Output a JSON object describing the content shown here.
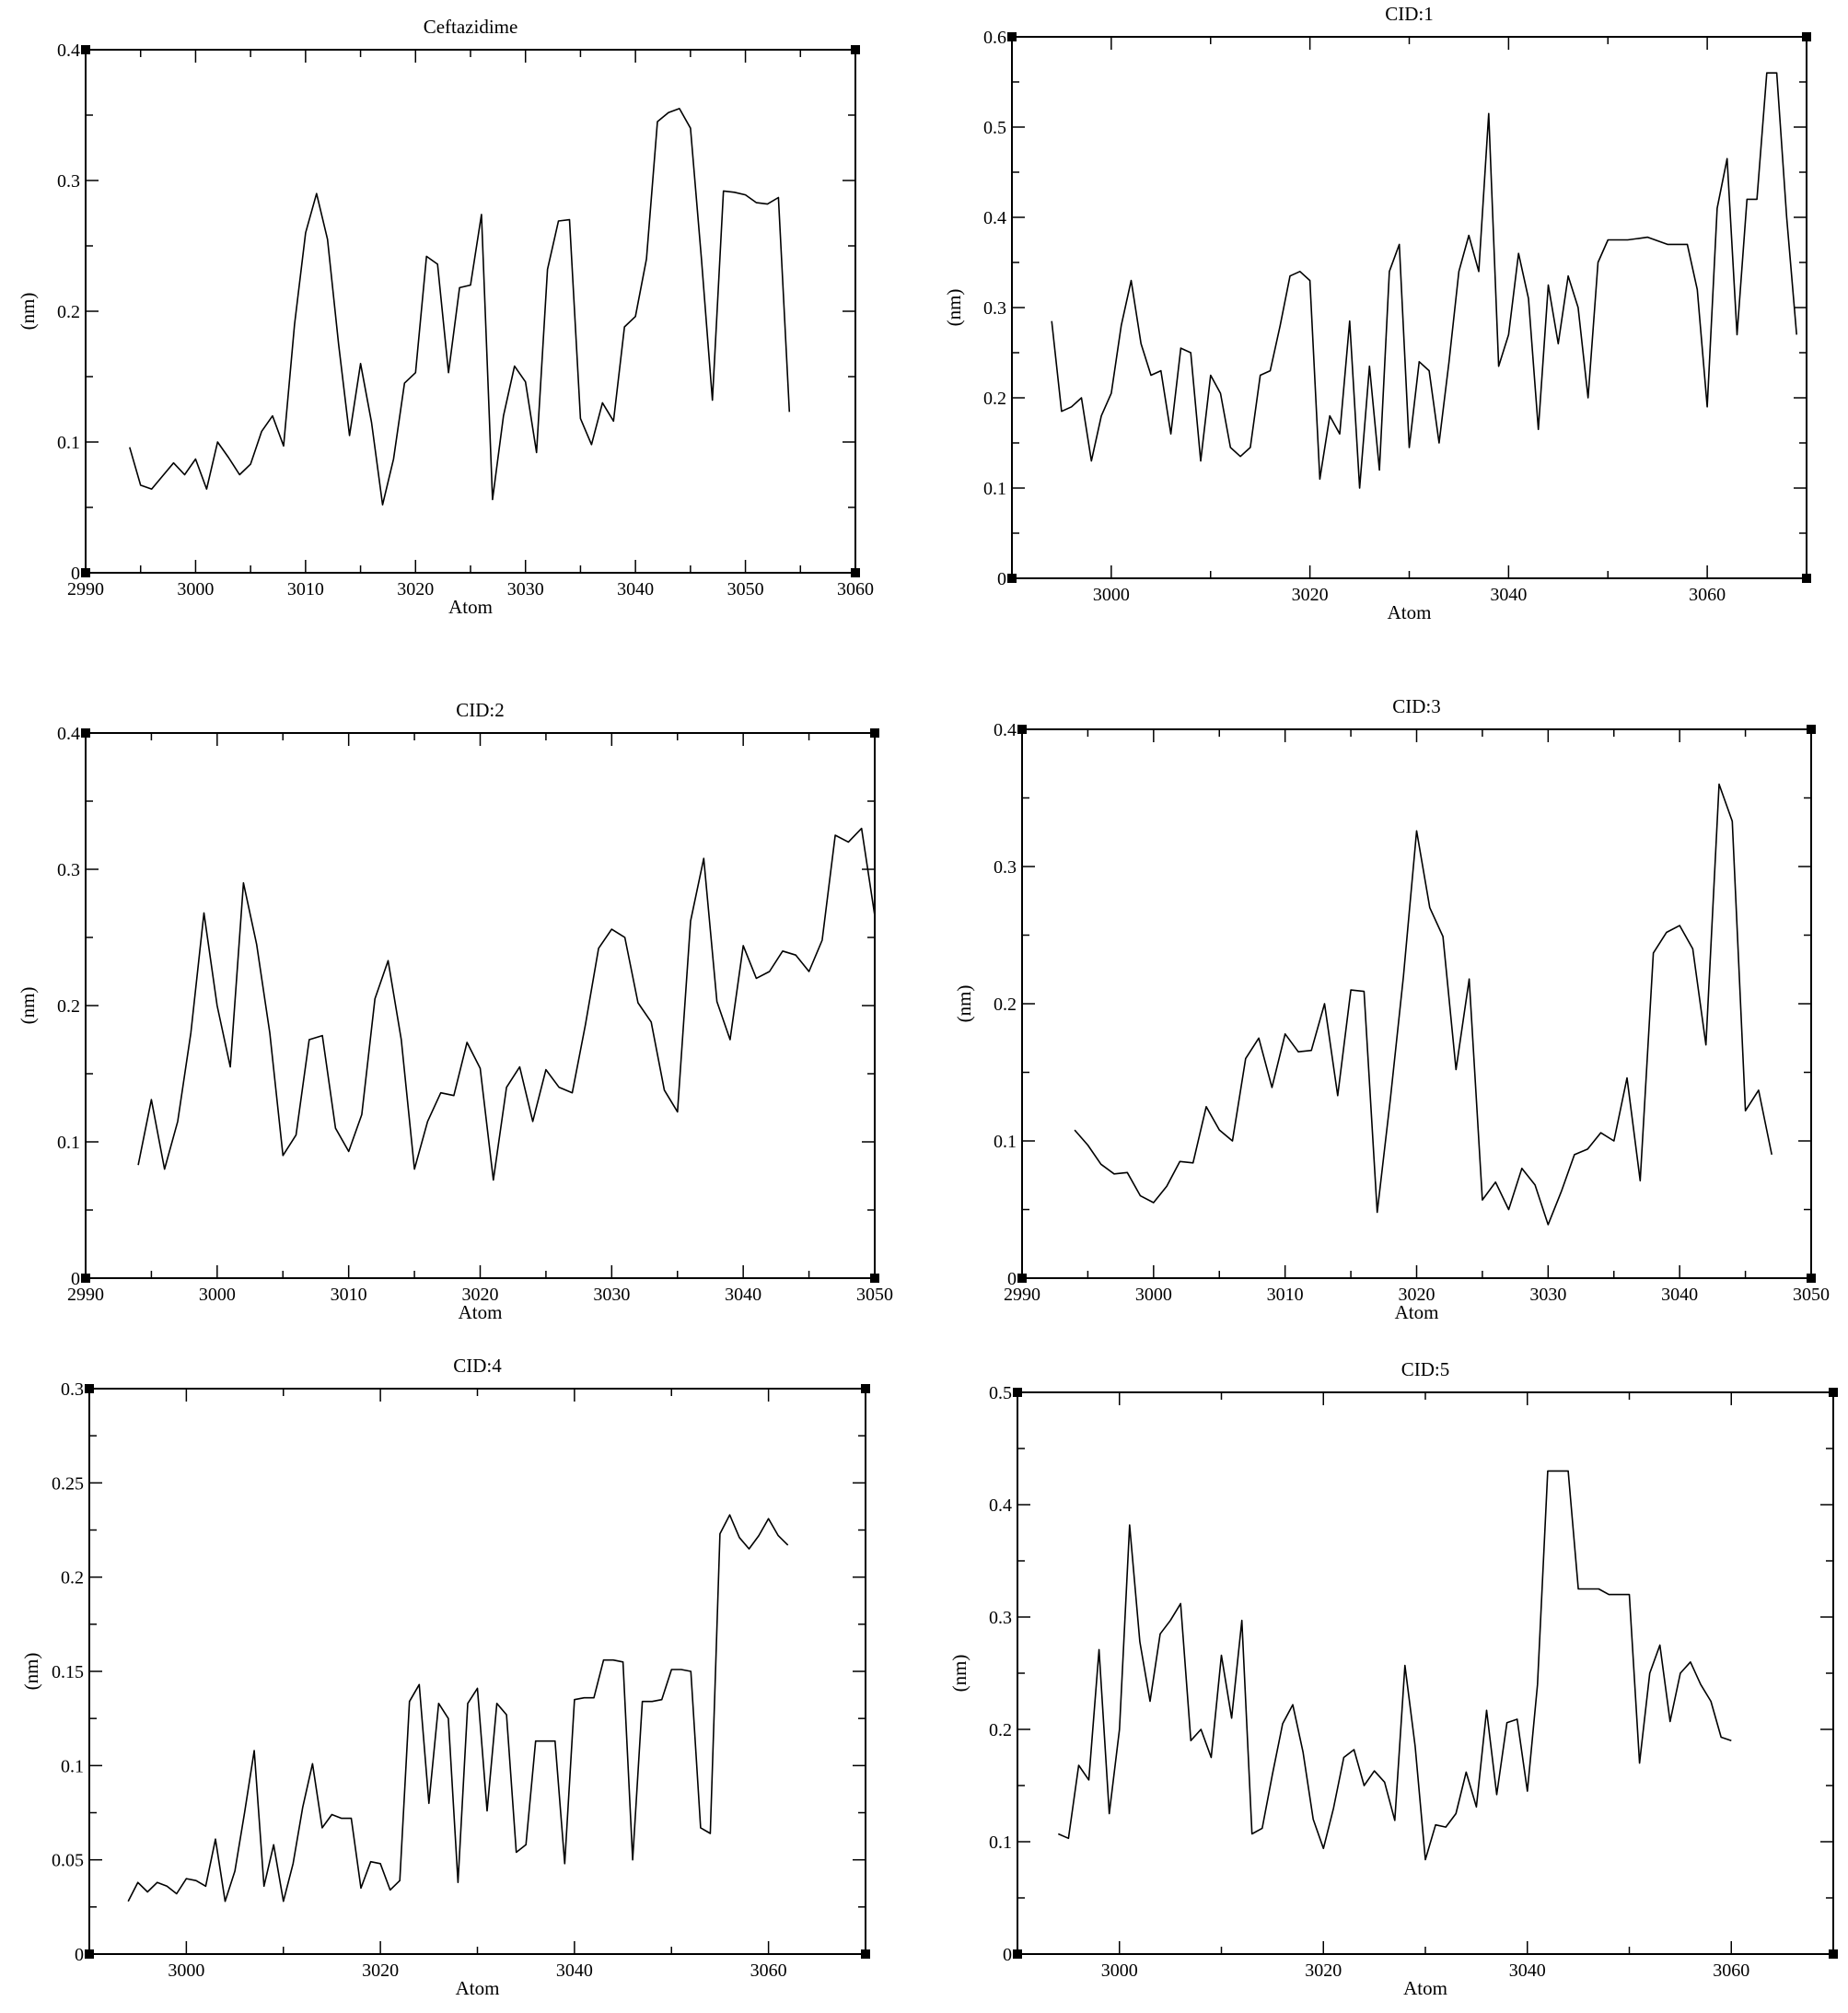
{
  "chart_data": [
    {
      "type": "line",
      "title": "Ceftazidime",
      "xlabel": "Atom",
      "ylabel": "(nm)",
      "xlim": [
        2990,
        3060
      ],
      "ylim": [
        0,
        0.4
      ],
      "xticks": [
        2990,
        3000,
        3010,
        3020,
        3030,
        3040,
        3050,
        3060
      ],
      "xtick_labels": [
        "2990",
        "3000",
        "3010",
        "3020",
        "3030",
        "3040",
        "3050",
        "3060"
      ],
      "yticks": [
        0,
        0.1,
        0.2,
        0.3,
        0.4
      ],
      "ytick_labels": [
        "0",
        "0.1",
        "0.2",
        "0.3",
        "0.4"
      ],
      "grid": false,
      "series": [
        {
          "x": [
            2994,
            2995,
            2996,
            2997,
            2998,
            2999,
            3000,
            3001,
            3002,
            3003,
            3004,
            3005,
            3006,
            3007,
            3008,
            3009,
            3010,
            3011,
            3012,
            3013,
            3014,
            3015,
            3016,
            3017,
            3018,
            3019,
            3020,
            3021,
            3022,
            3023,
            3024,
            3025,
            3026,
            3027,
            3028,
            3029,
            3030,
            3031,
            3032,
            3033,
            3034,
            3035,
            3036,
            3037,
            3038,
            3039,
            3040,
            3041,
            3042,
            3043,
            3044,
            3045,
            3046,
            3047,
            3048,
            3049,
            3050,
            3051,
            3052,
            3053,
            3054
          ],
          "y": [
            0.096,
            0.067,
            0.064,
            0.074,
            0.084,
            0.075,
            0.087,
            0.064,
            0.1,
            0.088,
            0.075,
            0.083,
            0.108,
            0.12,
            0.097,
            0.19,
            0.26,
            0.29,
            0.255,
            0.175,
            0.105,
            0.16,
            0.115,
            0.052,
            0.087,
            0.145,
            0.153,
            0.242,
            0.236,
            0.153,
            0.218,
            0.22,
            0.274,
            0.056,
            0.12,
            0.158,
            0.146,
            0.092,
            0.232,
            0.269,
            0.27,
            0.118,
            0.098,
            0.13,
            0.116,
            0.188,
            0.196,
            0.24,
            0.345,
            0.352,
            0.355,
            0.34,
            0.24,
            0.132,
            0.292,
            0.291,
            0.289,
            0.283,
            0.282,
            0.287,
            0.123
          ]
        }
      ]
    },
    {
      "type": "line",
      "title": "CID:1",
      "xlabel": "Atom",
      "ylabel": "(nm)",
      "xlim": [
        2990,
        3070
      ],
      "ylim": [
        0,
        0.6
      ],
      "xticks": [
        3000,
        3020,
        3040,
        3060
      ],
      "xtick_labels": [
        "3000",
        "3020",
        "3040",
        "3060"
      ],
      "yticks": [
        0,
        0.1,
        0.2,
        0.3,
        0.4,
        0.5,
        0.6
      ],
      "ytick_labels": [
        "0",
        "0.1",
        "0.2",
        "0.3",
        "0.4",
        "0.5",
        "0.6"
      ],
      "grid": false,
      "series": [
        {
          "x": [
            2994,
            2995,
            2996,
            2997,
            2998,
            2999,
            3000,
            3001,
            3002,
            3003,
            3004,
            3005,
            3006,
            3007,
            3008,
            3009,
            3010,
            3011,
            3012,
            3013,
            3014,
            3015,
            3016,
            3017,
            3018,
            3019,
            3020,
            3021,
            3022,
            3023,
            3024,
            3025,
            3026,
            3027,
            3028,
            3029,
            3030,
            3031,
            3032,
            3033,
            3034,
            3035,
            3036,
            3037,
            3038,
            3039,
            3040,
            3041,
            3042,
            3043,
            3044,
            3045,
            3046,
            3047,
            3048,
            3049,
            3050,
            3052,
            3054,
            3056,
            3058,
            3059,
            3060,
            3061,
            3062,
            3063,
            3064,
            3065,
            3066,
            3067,
            3068,
            3069
          ],
          "y": [
            0.285,
            0.185,
            0.19,
            0.2,
            0.13,
            0.18,
            0.205,
            0.28,
            0.33,
            0.26,
            0.225,
            0.23,
            0.16,
            0.255,
            0.25,
            0.13,
            0.225,
            0.205,
            0.145,
            0.135,
            0.145,
            0.225,
            0.23,
            0.28,
            0.335,
            0.34,
            0.33,
            0.11,
            0.18,
            0.16,
            0.285,
            0.1,
            0.235,
            0.12,
            0.34,
            0.37,
            0.145,
            0.24,
            0.23,
            0.15,
            0.24,
            0.34,
            0.38,
            0.34,
            0.515,
            0.235,
            0.27,
            0.36,
            0.31,
            0.165,
            0.325,
            0.26,
            0.335,
            0.3,
            0.2,
            0.35,
            0.375,
            0.375,
            0.378,
            0.37,
            0.37,
            0.32,
            0.19,
            0.41,
            0.465,
            0.27,
            0.42,
            0.42,
            0.56,
            0.56,
            0.4,
            0.27
          ]
        }
      ]
    },
    {
      "type": "line",
      "title": "CID:2",
      "xlabel": "Atom",
      "ylabel": "(nm)",
      "xlim": [
        2990,
        3050
      ],
      "ylim": [
        0,
        0.4
      ],
      "xticks": [
        2990,
        3000,
        3010,
        3020,
        3030,
        3040,
        3050
      ],
      "xtick_labels": [
        "2990",
        "3000",
        "3010",
        "3020",
        "3030",
        "3040",
        "3050"
      ],
      "yticks": [
        0,
        0.1,
        0.2,
        0.3,
        0.4
      ],
      "ytick_labels": [
        "0",
        "0.1",
        "0.2",
        "0.3",
        "0.4"
      ],
      "grid": false,
      "series": [
        {
          "x": [
            2994,
            2995,
            2996,
            2997,
            2998,
            2999,
            3000,
            3001,
            3002,
            3003,
            3004,
            3005,
            3006,
            3007,
            3008,
            3009,
            3010,
            3011,
            3012,
            3013,
            3014,
            3015,
            3016,
            3017,
            3018,
            3019,
            3020,
            3021,
            3022,
            3023,
            3024,
            3025,
            3026,
            3027,
            3028,
            3029,
            3030,
            3031,
            3032,
            3033,
            3034,
            3035,
            3036,
            3037,
            3038,
            3039,
            3040,
            3041,
            3042,
            3043,
            3044,
            3045,
            3046,
            3047,
            3048,
            3049,
            3050
          ],
          "y": [
            0.083,
            0.131,
            0.08,
            0.115,
            0.18,
            0.268,
            0.2,
            0.155,
            0.29,
            0.245,
            0.18,
            0.09,
            0.105,
            0.175,
            0.178,
            0.11,
            0.093,
            0.12,
            0.205,
            0.233,
            0.175,
            0.08,
            0.115,
            0.136,
            0.134,
            0.173,
            0.154,
            0.072,
            0.14,
            0.155,
            0.115,
            0.153,
            0.14,
            0.136,
            0.186,
            0.242,
            0.256,
            0.25,
            0.202,
            0.188,
            0.138,
            0.122,
            0.262,
            0.308,
            0.203,
            0.175,
            0.244,
            0.22,
            0.225,
            0.24,
            0.237,
            0.225,
            0.248,
            0.325,
            0.32,
            0.33,
            0.266
          ]
        }
      ]
    },
    {
      "type": "line",
      "title": "CID:3",
      "xlabel": "Atom",
      "ylabel": "(nm)",
      "xlim": [
        2990,
        3050
      ],
      "ylim": [
        0,
        0.4
      ],
      "xticks": [
        2990,
        3000,
        3010,
        3020,
        3030,
        3040,
        3050
      ],
      "xtick_labels": [
        "2990",
        "3000",
        "3010",
        "3020",
        "3030",
        "3040",
        "3050"
      ],
      "yticks": [
        0,
        0.1,
        0.2,
        0.3,
        0.4
      ],
      "ytick_labels": [
        "0",
        "0.1",
        "0.2",
        "0.3",
        "0.4"
      ],
      "grid": false,
      "series": [
        {
          "x": [
            2994,
            2995,
            2996,
            2997,
            2998,
            2999,
            3000,
            3001,
            3002,
            3003,
            3004,
            3005,
            3006,
            3007,
            3008,
            3009,
            3010,
            3011,
            3012,
            3013,
            3014,
            3015,
            3016,
            3017,
            3018,
            3019,
            3020,
            3021,
            3022,
            3023,
            3024,
            3025,
            3026,
            3027,
            3028,
            3029,
            3030,
            3031,
            3032,
            3033,
            3034,
            3035,
            3036,
            3037,
            3038,
            3039,
            3040,
            3041,
            3042,
            3043,
            3044,
            3045,
            3046,
            3047
          ],
          "y": [
            0.108,
            0.097,
            0.083,
            0.076,
            0.077,
            0.06,
            0.055,
            0.067,
            0.085,
            0.084,
            0.125,
            0.108,
            0.1,
            0.16,
            0.175,
            0.139,
            0.178,
            0.165,
            0.166,
            0.2,
            0.133,
            0.21,
            0.209,
            0.048,
            0.13,
            0.22,
            0.326,
            0.27,
            0.249,
            0.152,
            0.218,
            0.057,
            0.07,
            0.05,
            0.08,
            0.068,
            0.039,
            0.063,
            0.09,
            0.094,
            0.106,
            0.1,
            0.146,
            0.071,
            0.237,
            0.252,
            0.257,
            0.24,
            0.17,
            0.36,
            0.333,
            0.122,
            0.137,
            0.09
          ]
        }
      ]
    },
    {
      "type": "line",
      "title": "CID:4",
      "xlabel": "Atom",
      "ylabel": "(nm)",
      "xlim": [
        2990,
        3070
      ],
      "ylim": [
        0,
        0.3
      ],
      "xticks": [
        3000,
        3020,
        3040,
        3060
      ],
      "xtick_labels": [
        "3000",
        "3020",
        "3040",
        "3060"
      ],
      "yticks": [
        0,
        0.05,
        0.1,
        0.15,
        0.2,
        0.25,
        0.3
      ],
      "ytick_labels": [
        "0",
        "0.05",
        "0.1",
        "0.15",
        "0.2",
        "0.25",
        "0.3"
      ],
      "grid": false,
      "series": [
        {
          "x": [
            2994,
            2995,
            2996,
            2997,
            2998,
            2999,
            3000,
            3001,
            3002,
            3003,
            3004,
            3005,
            3006,
            3007,
            3008,
            3009,
            3010,
            3011,
            3012,
            3013,
            3014,
            3015,
            3016,
            3017,
            3018,
            3019,
            3020,
            3021,
            3022,
            3023,
            3024,
            3025,
            3026,
            3027,
            3028,
            3029,
            3030,
            3031,
            3032,
            3033,
            3034,
            3035,
            3036,
            3037,
            3038,
            3039,
            3040,
            3041,
            3042,
            3043,
            3044,
            3045,
            3046,
            3047,
            3048,
            3049,
            3050,
            3051,
            3052,
            3053,
            3054,
            3055,
            3056,
            3057,
            3058,
            3059,
            3060,
            3061,
            3062
          ],
          "y": [
            0.028,
            0.038,
            0.033,
            0.038,
            0.036,
            0.032,
            0.04,
            0.039,
            0.036,
            0.061,
            0.028,
            0.044,
            0.075,
            0.108,
            0.036,
            0.058,
            0.028,
            0.048,
            0.078,
            0.101,
            0.067,
            0.074,
            0.072,
            0.072,
            0.035,
            0.049,
            0.048,
            0.034,
            0.039,
            0.134,
            0.143,
            0.08,
            0.133,
            0.125,
            0.038,
            0.133,
            0.141,
            0.076,
            0.133,
            0.127,
            0.054,
            0.058,
            0.113,
            0.113,
            0.113,
            0.048,
            0.135,
            0.136,
            0.136,
            0.156,
            0.156,
            0.155,
            0.05,
            0.134,
            0.134,
            0.135,
            0.151,
            0.151,
            0.15,
            0.067,
            0.064,
            0.223,
            0.233,
            0.221,
            0.215,
            0.222,
            0.231,
            0.222,
            0.217
          ]
        }
      ]
    },
    {
      "type": "line",
      "title": "CID:5",
      "xlabel": "Atom",
      "ylabel": "(nm)",
      "xlim": [
        2990,
        3070
      ],
      "ylim": [
        0,
        0.5
      ],
      "xticks": [
        3000,
        3020,
        3040,
        3060
      ],
      "xtick_labels": [
        "3000",
        "3020",
        "3040",
        "3060"
      ],
      "yticks": [
        0,
        0.1,
        0.2,
        0.3,
        0.4,
        0.5
      ],
      "ytick_labels": [
        "0",
        "0.1",
        "0.2",
        "0.3",
        "0.4",
        "0.5"
      ],
      "grid": false,
      "series": [
        {
          "x": [
            2994,
            2995,
            2996,
            2997,
            2998,
            2999,
            3000,
            3001,
            3002,
            3003,
            3004,
            3005,
            3006,
            3007,
            3008,
            3009,
            3010,
            3011,
            3012,
            3013,
            3014,
            3015,
            3016,
            3017,
            3018,
            3019,
            3020,
            3021,
            3022,
            3023,
            3024,
            3025,
            3026,
            3027,
            3028,
            3029,
            3030,
            3031,
            3032,
            3033,
            3034,
            3035,
            3036,
            3037,
            3038,
            3039,
            3040,
            3041,
            3042,
            3043,
            3044,
            3045,
            3046,
            3047,
            3048,
            3049,
            3050,
            3051,
            3052,
            3053,
            3054,
            3055,
            3056,
            3057,
            3058,
            3059,
            3060
          ],
          "y": [
            0.107,
            0.103,
            0.168,
            0.155,
            0.271,
            0.125,
            0.2,
            0.382,
            0.278,
            0.225,
            0.285,
            0.297,
            0.312,
            0.19,
            0.2,
            0.175,
            0.266,
            0.21,
            0.297,
            0.107,
            0.112,
            0.16,
            0.205,
            0.222,
            0.18,
            0.12,
            0.094,
            0.13,
            0.175,
            0.182,
            0.15,
            0.163,
            0.153,
            0.119,
            0.257,
            0.185,
            0.084,
            0.115,
            0.113,
            0.125,
            0.162,
            0.131,
            0.217,
            0.142,
            0.206,
            0.209,
            0.145,
            0.24,
            0.43,
            0.43,
            0.43,
            0.325,
            0.325,
            0.325,
            0.32,
            0.32,
            0.32,
            0.17,
            0.25,
            0.275,
            0.207,
            0.25,
            0.26,
            0.24,
            0.225,
            0.193,
            0.19
          ]
        }
      ]
    }
  ]
}
